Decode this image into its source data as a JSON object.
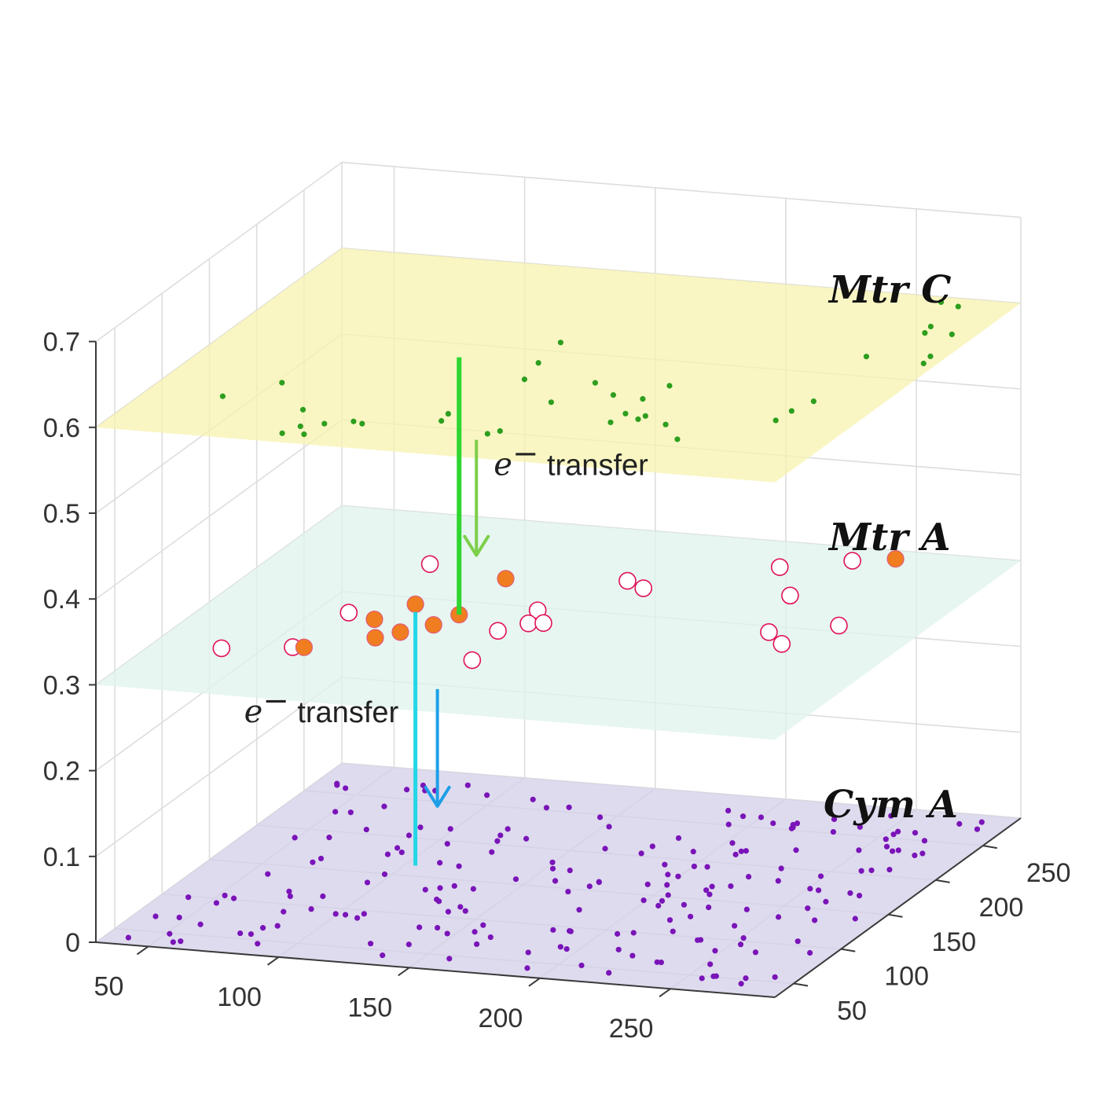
{
  "chart_data": {
    "type": "scatter",
    "subtype": "3d-stacked-planes",
    "axes": {
      "x": {
        "ticks": [
          50,
          100,
          150,
          200,
          250
        ],
        "range": [
          30,
          290
        ]
      },
      "y": {
        "ticks": [
          50,
          100,
          150,
          200,
          250
        ],
        "range": [
          30,
          290
        ]
      },
      "z": {
        "ticks": [
          0,
          0.1,
          0.2,
          0.3,
          0.4,
          0.5,
          0.6,
          0.7
        ],
        "tick_labels": [
          "0",
          "0.1",
          "0.2",
          "0.3",
          "0.4",
          "0.5",
          "0.6",
          "0.7"
        ],
        "range": [
          0,
          0.7
        ]
      }
    },
    "grid": true,
    "planes": [
      {
        "label": "Mtr C",
        "z": 0.6,
        "fill": "#f7f3b0",
        "marker_color": "#2e9e1e",
        "points": [
          [
            59,
            84
          ],
          [
            73,
            108
          ],
          [
            93,
            75
          ],
          [
            155,
            138
          ],
          [
            168,
            63
          ],
          [
            171,
            68
          ],
          [
            116,
            65
          ],
          [
            120,
            63
          ],
          [
            107,
            59
          ],
          [
            100,
            53
          ],
          [
            97,
            42
          ],
          [
            105,
            43
          ],
          [
            146,
            75
          ],
          [
            145,
            85
          ],
          [
            205,
            125
          ],
          [
            193,
            127
          ],
          [
            181,
            141
          ],
          [
            175,
            111
          ],
          [
            150,
            190
          ],
          [
            152,
            161
          ],
          [
            208,
            145
          ],
          [
            205,
            91
          ],
          [
            214,
            103
          ],
          [
            213,
            98
          ],
          [
            206,
            104
          ],
          [
            225,
            94
          ],
          [
            236,
            76
          ],
          [
            262,
            125
          ],
          [
            261,
            111
          ],
          [
            265,
            140
          ],
          [
            284,
            211
          ],
          [
            285,
            201
          ],
          [
            281,
            242
          ],
          [
            270,
            250
          ],
          [
            270,
            279
          ],
          [
            262,
            283
          ],
          [
            271,
            241
          ],
          [
            262,
            204
          ]
        ]
      },
      {
        "label": "Mtr A",
        "z": 0.3,
        "fill": "#dff3ec",
        "open_marker_color": "#e0105a",
        "filled_marker_color": "#f07d20",
        "open_points": [
          [
            56,
            91
          ],
          [
            80,
            100
          ],
          [
            83,
            151
          ],
          [
            88,
            223
          ],
          [
            143,
            143
          ],
          [
            148,
            102
          ],
          [
            147,
            174
          ],
          [
            150,
            156
          ],
          [
            155,
            158
          ],
          [
            164,
            222
          ],
          [
            173,
            214
          ],
          [
            232,
            272
          ],
          [
            210,
            256
          ],
          [
            227,
            220
          ],
          [
            237,
            170
          ],
          [
            258,
            186
          ],
          [
            247,
            156
          ]
        ],
        "filled_points": [
          [
            122,
            160
          ],
          [
            110,
            131
          ],
          [
            104,
            121
          ],
          [
            84,
            101
          ],
          [
            121,
            212
          ],
          [
            102,
            169
          ],
          [
            95,
            145
          ],
          [
            118,
            144
          ],
          [
            246,
            279
          ]
        ]
      },
      {
        "label": "Cym A",
        "z": 0.0,
        "fill": "#d3cfe8",
        "marker_color": "#7a14b8",
        "point_count": 200
      }
    ],
    "annotations": [
      {
        "text": "transfer",
        "prefix": "e",
        "superscript": "−",
        "from": "Mtr C",
        "to": "Mtr A",
        "color": "#2fd62f"
      },
      {
        "text": "transfer",
        "prefix": "e",
        "superscript": "−",
        "from": "Mtr A",
        "to": "Cym A",
        "color": "#22d7e8"
      }
    ]
  }
}
